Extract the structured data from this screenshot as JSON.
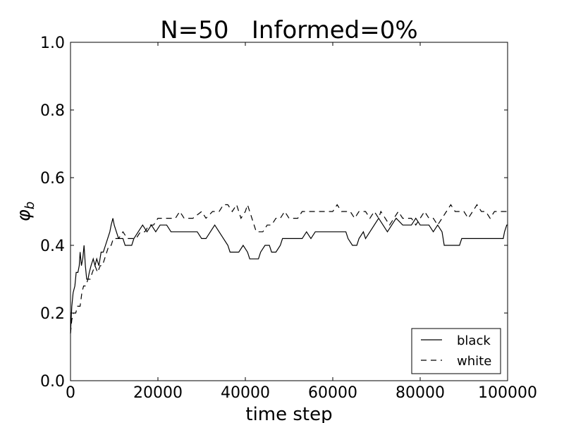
{
  "chart_data": {
    "type": "line",
    "title": "N=50   Informed=0%",
    "xlabel": "time step",
    "ylabel": "φb",
    "xlim": [
      0,
      100000
    ],
    "ylim": [
      0.0,
      1.0
    ],
    "xticks": [
      0,
      20000,
      40000,
      60000,
      80000,
      100000
    ],
    "xtick_labels": [
      "0",
      "20000",
      "40000",
      "60000",
      "80000",
      "100000"
    ],
    "yticks": [
      0.0,
      0.2,
      0.4,
      0.6,
      0.8,
      1.0
    ],
    "ytick_labels": [
      "0.0",
      "0.2",
      "0.4",
      "0.6",
      "0.8",
      "1.0"
    ],
    "grid": false,
    "legend_position": "lower-right",
    "series": [
      {
        "name": "black",
        "style": "solid",
        "color": "#000000",
        "points": [
          [
            0,
            0.14
          ],
          [
            300,
            0.22
          ],
          [
            600,
            0.26
          ],
          [
            1000,
            0.28
          ],
          [
            1300,
            0.32
          ],
          [
            1700,
            0.32
          ],
          [
            2000,
            0.34
          ],
          [
            2200,
            0.38
          ],
          [
            2500,
            0.34
          ],
          [
            2800,
            0.36
          ],
          [
            3100,
            0.4
          ],
          [
            3400,
            0.34
          ],
          [
            3700,
            0.3
          ],
          [
            4000,
            0.3
          ],
          [
            4300,
            0.32
          ],
          [
            4700,
            0.34
          ],
          [
            5200,
            0.36
          ],
          [
            5600,
            0.34
          ],
          [
            6000,
            0.36
          ],
          [
            6500,
            0.34
          ],
          [
            7000,
            0.38
          ],
          [
            7500,
            0.38
          ],
          [
            8000,
            0.4
          ],
          [
            8500,
            0.42
          ],
          [
            9000,
            0.44
          ],
          [
            9300,
            0.46
          ],
          [
            9700,
            0.48
          ],
          [
            10000,
            0.46
          ],
          [
            10500,
            0.44
          ],
          [
            11000,
            0.42
          ],
          [
            12000,
            0.42
          ],
          [
            12500,
            0.4
          ],
          [
            14000,
            0.4
          ],
          [
            14500,
            0.42
          ],
          [
            15500,
            0.44
          ],
          [
            16500,
            0.46
          ],
          [
            17500,
            0.44
          ],
          [
            18500,
            0.46
          ],
          [
            19500,
            0.44
          ],
          [
            20500,
            0.46
          ],
          [
            22000,
            0.46
          ],
          [
            23000,
            0.44
          ],
          [
            24000,
            0.44
          ],
          [
            29000,
            0.44
          ],
          [
            30000,
            0.42
          ],
          [
            31000,
            0.42
          ],
          [
            32000,
            0.44
          ],
          [
            33000,
            0.46
          ],
          [
            34000,
            0.44
          ],
          [
            35000,
            0.42
          ],
          [
            36000,
            0.4
          ],
          [
            36500,
            0.38
          ],
          [
            38500,
            0.38
          ],
          [
            39500,
            0.4
          ],
          [
            40500,
            0.38
          ],
          [
            41000,
            0.36
          ],
          [
            43000,
            0.36
          ],
          [
            43500,
            0.38
          ],
          [
            44500,
            0.4
          ],
          [
            45500,
            0.4
          ],
          [
            46000,
            0.38
          ],
          [
            47000,
            0.38
          ],
          [
            48000,
            0.4
          ],
          [
            48500,
            0.42
          ],
          [
            53000,
            0.42
          ],
          [
            54000,
            0.44
          ],
          [
            55000,
            0.42
          ],
          [
            56000,
            0.44
          ],
          [
            59000,
            0.44
          ],
          [
            60000,
            0.44
          ],
          [
            63000,
            0.44
          ],
          [
            63500,
            0.42
          ],
          [
            64500,
            0.4
          ],
          [
            65500,
            0.4
          ],
          [
            66000,
            0.42
          ],
          [
            67000,
            0.44
          ],
          [
            67500,
            0.42
          ],
          [
            68500,
            0.44
          ],
          [
            69500,
            0.46
          ],
          [
            70500,
            0.48
          ],
          [
            71500,
            0.46
          ],
          [
            72500,
            0.44
          ],
          [
            73500,
            0.46
          ],
          [
            74500,
            0.48
          ],
          [
            76000,
            0.46
          ],
          [
            78000,
            0.46
          ],
          [
            79000,
            0.48
          ],
          [
            80000,
            0.46
          ],
          [
            82000,
            0.46
          ],
          [
            83000,
            0.44
          ],
          [
            84000,
            0.46
          ],
          [
            85000,
            0.44
          ],
          [
            85500,
            0.4
          ],
          [
            89000,
            0.4
          ],
          [
            89500,
            0.42
          ],
          [
            91000,
            0.42
          ],
          [
            99000,
            0.42
          ],
          [
            99300,
            0.44
          ],
          [
            99800,
            0.46
          ],
          [
            100000,
            0.46
          ]
        ]
      },
      {
        "name": "white",
        "style": "dashed",
        "color": "#000000",
        "points": [
          [
            0,
            0.14
          ],
          [
            300,
            0.18
          ],
          [
            700,
            0.2
          ],
          [
            1200,
            0.2
          ],
          [
            1600,
            0.22
          ],
          [
            2200,
            0.22
          ],
          [
            2600,
            0.26
          ],
          [
            3000,
            0.28
          ],
          [
            3500,
            0.28
          ],
          [
            4000,
            0.3
          ],
          [
            4500,
            0.3
          ],
          [
            5000,
            0.32
          ],
          [
            5600,
            0.34
          ],
          [
            6200,
            0.32
          ],
          [
            6800,
            0.34
          ],
          [
            7300,
            0.34
          ],
          [
            7800,
            0.36
          ],
          [
            8300,
            0.38
          ],
          [
            8800,
            0.4
          ],
          [
            9300,
            0.4
          ],
          [
            9800,
            0.42
          ],
          [
            10300,
            0.42
          ],
          [
            11000,
            0.42
          ],
          [
            12000,
            0.44
          ],
          [
            13000,
            0.42
          ],
          [
            14000,
            0.42
          ],
          [
            15000,
            0.42
          ],
          [
            16000,
            0.44
          ],
          [
            17000,
            0.44
          ],
          [
            18000,
            0.46
          ],
          [
            19000,
            0.46
          ],
          [
            20000,
            0.48
          ],
          [
            22000,
            0.48
          ],
          [
            24000,
            0.48
          ],
          [
            25000,
            0.5
          ],
          [
            26000,
            0.48
          ],
          [
            28000,
            0.48
          ],
          [
            30000,
            0.5
          ],
          [
            31000,
            0.48
          ],
          [
            32500,
            0.5
          ],
          [
            34000,
            0.5
          ],
          [
            35000,
            0.52
          ],
          [
            36000,
            0.52
          ],
          [
            37000,
            0.5
          ],
          [
            38000,
            0.52
          ],
          [
            38500,
            0.5
          ],
          [
            39000,
            0.48
          ],
          [
            40000,
            0.5
          ],
          [
            40500,
            0.52
          ],
          [
            41500,
            0.48
          ],
          [
            42000,
            0.46
          ],
          [
            42500,
            0.44
          ],
          [
            44000,
            0.44
          ],
          [
            45000,
            0.46
          ],
          [
            46000,
            0.46
          ],
          [
            47000,
            0.48
          ],
          [
            48000,
            0.48
          ],
          [
            49000,
            0.5
          ],
          [
            50000,
            0.48
          ],
          [
            52000,
            0.48
          ],
          [
            53000,
            0.5
          ],
          [
            54000,
            0.5
          ],
          [
            56000,
            0.5
          ],
          [
            57000,
            0.5
          ],
          [
            60000,
            0.5
          ],
          [
            61000,
            0.52
          ],
          [
            62000,
            0.5
          ],
          [
            64000,
            0.5
          ],
          [
            65000,
            0.48
          ],
          [
            66000,
            0.5
          ],
          [
            67500,
            0.5
          ],
          [
            68500,
            0.48
          ],
          [
            69500,
            0.5
          ],
          [
            70500,
            0.48
          ],
          [
            71000,
            0.5
          ],
          [
            72000,
            0.48
          ],
          [
            73000,
            0.46
          ],
          [
            74000,
            0.48
          ],
          [
            75000,
            0.5
          ],
          [
            76000,
            0.48
          ],
          [
            78000,
            0.48
          ],
          [
            79000,
            0.46
          ],
          [
            80000,
            0.48
          ],
          [
            81000,
            0.5
          ],
          [
            82000,
            0.48
          ],
          [
            83000,
            0.48
          ],
          [
            84000,
            0.46
          ],
          [
            85000,
            0.48
          ],
          [
            86000,
            0.5
          ],
          [
            87000,
            0.52
          ],
          [
            88000,
            0.5
          ],
          [
            89000,
            0.5
          ],
          [
            90000,
            0.5
          ],
          [
            91000,
            0.48
          ],
          [
            92000,
            0.5
          ],
          [
            93000,
            0.52
          ],
          [
            94000,
            0.5
          ],
          [
            95000,
            0.5
          ],
          [
            96000,
            0.48
          ],
          [
            97000,
            0.5
          ],
          [
            98000,
            0.5
          ],
          [
            100000,
            0.5
          ]
        ]
      }
    ]
  }
}
